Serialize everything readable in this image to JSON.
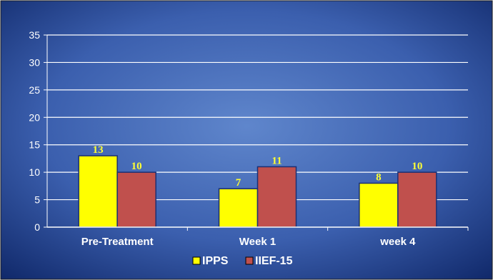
{
  "chart_data": {
    "type": "bar",
    "title": "",
    "xlabel": "",
    "ylabel": "",
    "categories": [
      "Pre-Treatment",
      "Week 1",
      "week 4"
    ],
    "series": [
      {
        "name": "IPPS",
        "values": [
          13,
          7,
          8
        ],
        "color": "#ffff00"
      },
      {
        "name": "IIEF-15",
        "values": [
          10,
          11,
          10
        ],
        "color": "#c0504d"
      }
    ],
    "ylim": [
      0,
      35
    ],
    "yticks": [
      0,
      5,
      10,
      15,
      20,
      25,
      30,
      35
    ],
    "grid": true,
    "legend": "bottom",
    "colors": {
      "background_center": "#5b82c9",
      "background_edge": "#0d2566",
      "gridline": "#ffffff",
      "text": "#ffffff",
      "data_label": "#ffff33"
    }
  }
}
